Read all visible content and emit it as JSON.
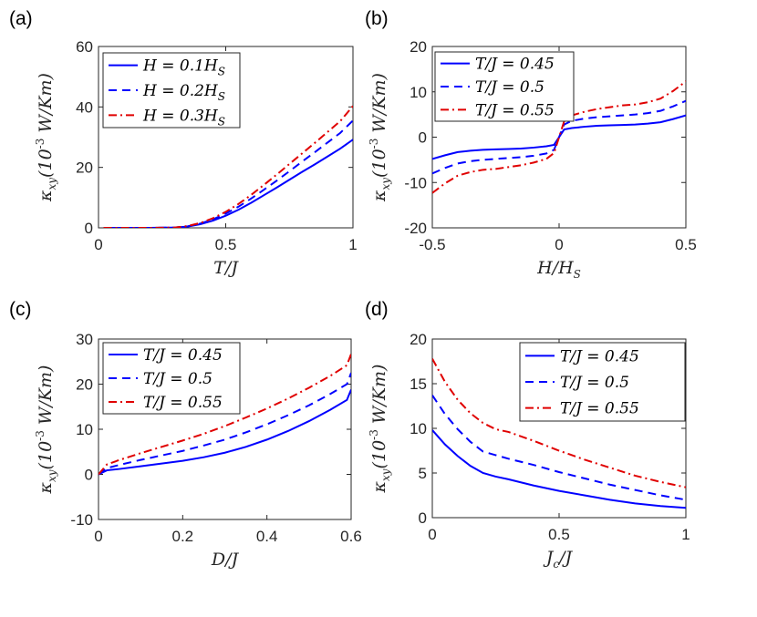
{
  "colors": {
    "blue": "#0000ff",
    "red": "#e00000",
    "axis": "#262626"
  },
  "chart_data": [
    {
      "panel_label": "(a)",
      "type": "line",
      "xlabel": "T/J",
      "ylabel": "κ_xy(10^-3 W/Km)",
      "xlim": [
        0,
        1
      ],
      "ylim": [
        0,
        60
      ],
      "xticks": [
        0,
        0.5,
        1
      ],
      "xtick_labels": [
        "0",
        "0.5",
        "1"
      ],
      "yticks": [
        0,
        20,
        40,
        60
      ],
      "ytick_labels": [
        "0",
        "20",
        "40",
        "60"
      ],
      "legend_position": "top-left",
      "x": [
        0.02,
        0.1,
        0.2,
        0.3,
        0.35,
        0.4,
        0.45,
        0.5,
        0.55,
        0.6,
        0.65,
        0.7,
        0.75,
        0.8,
        0.85,
        0.9,
        0.95,
        1.0
      ],
      "series": [
        {
          "name": "H = 0.1H_S",
          "style": "solid",
          "color": "#0000ff",
          "values": [
            0,
            0,
            0,
            0.1,
            0.4,
            1.2,
            2.4,
            4.0,
            6.0,
            8.3,
            10.8,
            13.3,
            15.9,
            18.5,
            21.0,
            23.6,
            26.2,
            29.2
          ]
        },
        {
          "name": "H = 0.2H_S",
          "style": "dashed",
          "color": "#0000ff",
          "values": [
            0,
            0,
            0,
            0.1,
            0.5,
            1.4,
            2.8,
            4.7,
            7.0,
            9.7,
            12.6,
            15.6,
            18.7,
            21.9,
            25.0,
            28.2,
            31.4,
            35.5
          ]
        },
        {
          "name": "H = 0.3H_S",
          "style": "dashdot",
          "color": "#e00000",
          "values": [
            0,
            0,
            0,
            0.1,
            0.6,
            1.6,
            3.2,
            5.3,
            7.9,
            10.9,
            14.2,
            17.6,
            21.1,
            24.6,
            28.1,
            31.7,
            35.3,
            40.3
          ]
        }
      ]
    },
    {
      "panel_label": "(b)",
      "type": "line",
      "xlabel": "H/H_S",
      "ylabel": "κ_xy(10^-3 W/Km)",
      "xlim": [
        -0.5,
        0.5
      ],
      "ylim": [
        -20,
        20
      ],
      "xticks": [
        -0.5,
        0,
        0.5
      ],
      "xtick_labels": [
        "-0.5",
        "0",
        "0.5"
      ],
      "yticks": [
        -20,
        -10,
        0,
        10,
        20
      ],
      "ytick_labels": [
        "-20",
        "-10",
        "0",
        "10",
        "20"
      ],
      "legend_position": "top-left",
      "x": [
        -0.5,
        -0.45,
        -0.4,
        -0.35,
        -0.3,
        -0.25,
        -0.2,
        -0.15,
        -0.1,
        -0.05,
        -0.02,
        0,
        0.02,
        0.05,
        0.1,
        0.15,
        0.2,
        0.25,
        0.3,
        0.35,
        0.4,
        0.45,
        0.5
      ],
      "series": [
        {
          "name": "T/J = 0.45",
          "style": "solid",
          "color": "#0000ff",
          "values": [
            -4.8,
            -4.0,
            -3.3,
            -3.0,
            -2.8,
            -2.7,
            -2.6,
            -2.5,
            -2.3,
            -2.0,
            -1.7,
            0,
            1.7,
            2.0,
            2.3,
            2.5,
            2.6,
            2.7,
            2.8,
            3.0,
            3.3,
            4.0,
            4.8
          ]
        },
        {
          "name": "T/J = 0.5",
          "style": "dashed",
          "color": "#0000ff",
          "values": [
            -8.0,
            -6.8,
            -5.8,
            -5.3,
            -5.0,
            -4.8,
            -4.6,
            -4.4,
            -4.1,
            -3.6,
            -2.8,
            0,
            2.8,
            3.6,
            4.1,
            4.4,
            4.6,
            4.8,
            5.0,
            5.3,
            5.8,
            6.8,
            8.0
          ]
        },
        {
          "name": "T/J = 0.55",
          "style": "dashdot",
          "color": "#e00000",
          "values": [
            -12.3,
            -10.2,
            -8.5,
            -7.7,
            -7.2,
            -7.0,
            -6.6,
            -6.2,
            -5.6,
            -4.8,
            -3.5,
            0,
            3.5,
            4.8,
            5.6,
            6.2,
            6.6,
            7.0,
            7.2,
            7.7,
            8.5,
            10.2,
            12.3
          ]
        }
      ]
    },
    {
      "panel_label": "(c)",
      "type": "line",
      "xlabel": "D/J",
      "ylabel": "κ_xy(10^-3 W/Km)",
      "xlim": [
        0,
        0.6
      ],
      "ylim": [
        -10,
        30
      ],
      "xticks": [
        0,
        0.2,
        0.4,
        0.6
      ],
      "xtick_labels": [
        "0",
        "0.2",
        "0.4",
        "0.6"
      ],
      "yticks": [
        -10,
        0,
        10,
        20,
        30
      ],
      "ytick_labels": [
        "-10",
        "0",
        "10",
        "20",
        "30"
      ],
      "legend_position": "top-left",
      "x": [
        0,
        0.02,
        0.05,
        0.1,
        0.15,
        0.2,
        0.25,
        0.3,
        0.35,
        0.4,
        0.45,
        0.5,
        0.55,
        0.59,
        0.6
      ],
      "series": [
        {
          "name": "T/J = 0.45",
          "style": "solid",
          "color": "#0000ff",
          "values": [
            0,
            0.9,
            1.2,
            1.8,
            2.4,
            3.0,
            3.8,
            4.8,
            6.1,
            7.7,
            9.6,
            11.8,
            14.3,
            16.5,
            18.8
          ]
        },
        {
          "name": "T/J = 0.5",
          "style": "dashed",
          "color": "#0000ff",
          "values": [
            0,
            1.4,
            2.1,
            3.2,
            4.2,
            5.2,
            6.4,
            7.7,
            9.3,
            11.1,
            13.1,
            15.3,
            17.8,
            20.0,
            22.5
          ]
        },
        {
          "name": "T/J = 0.55",
          "style": "dashdot",
          "color": "#e00000",
          "values": [
            0,
            2.2,
            3.2,
            4.7,
            6.1,
            7.5,
            9.0,
            10.7,
            12.6,
            14.6,
            16.8,
            19.2,
            21.8,
            24.2,
            26.7
          ]
        }
      ]
    },
    {
      "panel_label": "(d)",
      "type": "line",
      "xlabel": "J_c/J",
      "ylabel": "κ_xy(10^-3 W/Km)",
      "xlim": [
        0,
        1
      ],
      "ylim": [
        0,
        20
      ],
      "xticks": [
        0,
        0.5,
        1
      ],
      "xtick_labels": [
        "0",
        "0.5",
        "1"
      ],
      "yticks": [
        0,
        5,
        10,
        15,
        20
      ],
      "ytick_labels": [
        "0",
        "5",
        "10",
        "15",
        "20"
      ],
      "legend_position": "top-right",
      "x": [
        0,
        0.05,
        0.1,
        0.15,
        0.2,
        0.25,
        0.3,
        0.4,
        0.5,
        0.6,
        0.7,
        0.8,
        0.9,
        1.0
      ],
      "series": [
        {
          "name": "T/J = 0.45",
          "style": "solid",
          "color": "#0000ff",
          "values": [
            9.8,
            8.2,
            6.9,
            5.8,
            5.0,
            4.6,
            4.3,
            3.6,
            3.0,
            2.5,
            2.0,
            1.6,
            1.3,
            1.1
          ]
        },
        {
          "name": "T/J = 0.5",
          "style": "dashed",
          "color": "#0000ff",
          "values": [
            13.7,
            11.6,
            9.9,
            8.5,
            7.4,
            7.0,
            6.6,
            5.9,
            5.1,
            4.4,
            3.7,
            3.1,
            2.5,
            2.0
          ]
        },
        {
          "name": "T/J = 0.55",
          "style": "dashdot",
          "color": "#e00000",
          "values": [
            17.8,
            15.2,
            13.2,
            11.7,
            10.6,
            9.9,
            9.6,
            8.6,
            7.5,
            6.5,
            5.6,
            4.7,
            4.0,
            3.4
          ]
        }
      ]
    }
  ]
}
